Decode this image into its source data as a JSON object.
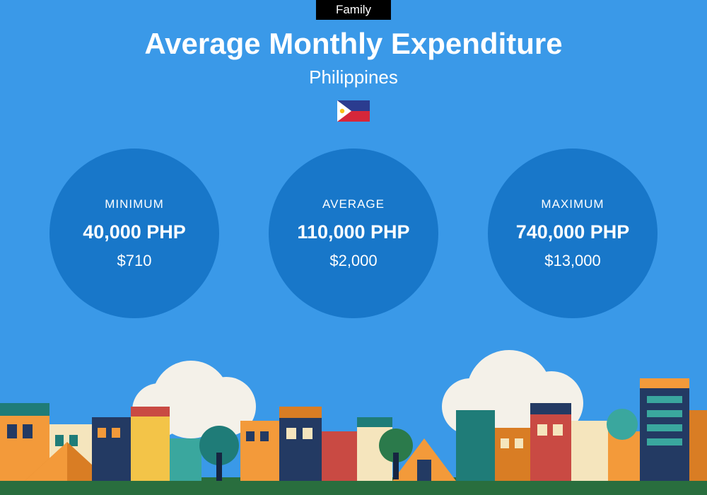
{
  "colors": {
    "background": "#3a99e8",
    "tag_bg": "#000000",
    "circle_bg": "#1877c9",
    "text": "#ffffff",
    "flag_blue": "#2b3c8f",
    "flag_red": "#d6273a",
    "flag_white": "#ffffff",
    "flag_sun": "#f8c019",
    "ground": "#296e3e",
    "cloud": "#f4f1e9",
    "b_orange": "#f39a3a",
    "b_orange_d": "#d97d24",
    "b_teal": "#1f7c78",
    "b_teal_l": "#3aa79e",
    "b_navy": "#233a63",
    "b_navy_d": "#162541",
    "b_red": "#c94a43",
    "b_cream": "#f5e5bd",
    "b_yellow": "#f3c448",
    "b_green": "#2b7a4b"
  },
  "header": {
    "tag": "Family",
    "title": "Average Monthly Expenditure",
    "subtitle": "Philippines"
  },
  "stats": [
    {
      "label": "MINIMUM",
      "php": "40,000 PHP",
      "usd": "$710"
    },
    {
      "label": "AVERAGE",
      "php": "110,000 PHP",
      "usd": "$2,000"
    },
    {
      "label": "MAXIMUM",
      "php": "740,000 PHP",
      "usd": "$13,000"
    }
  ]
}
